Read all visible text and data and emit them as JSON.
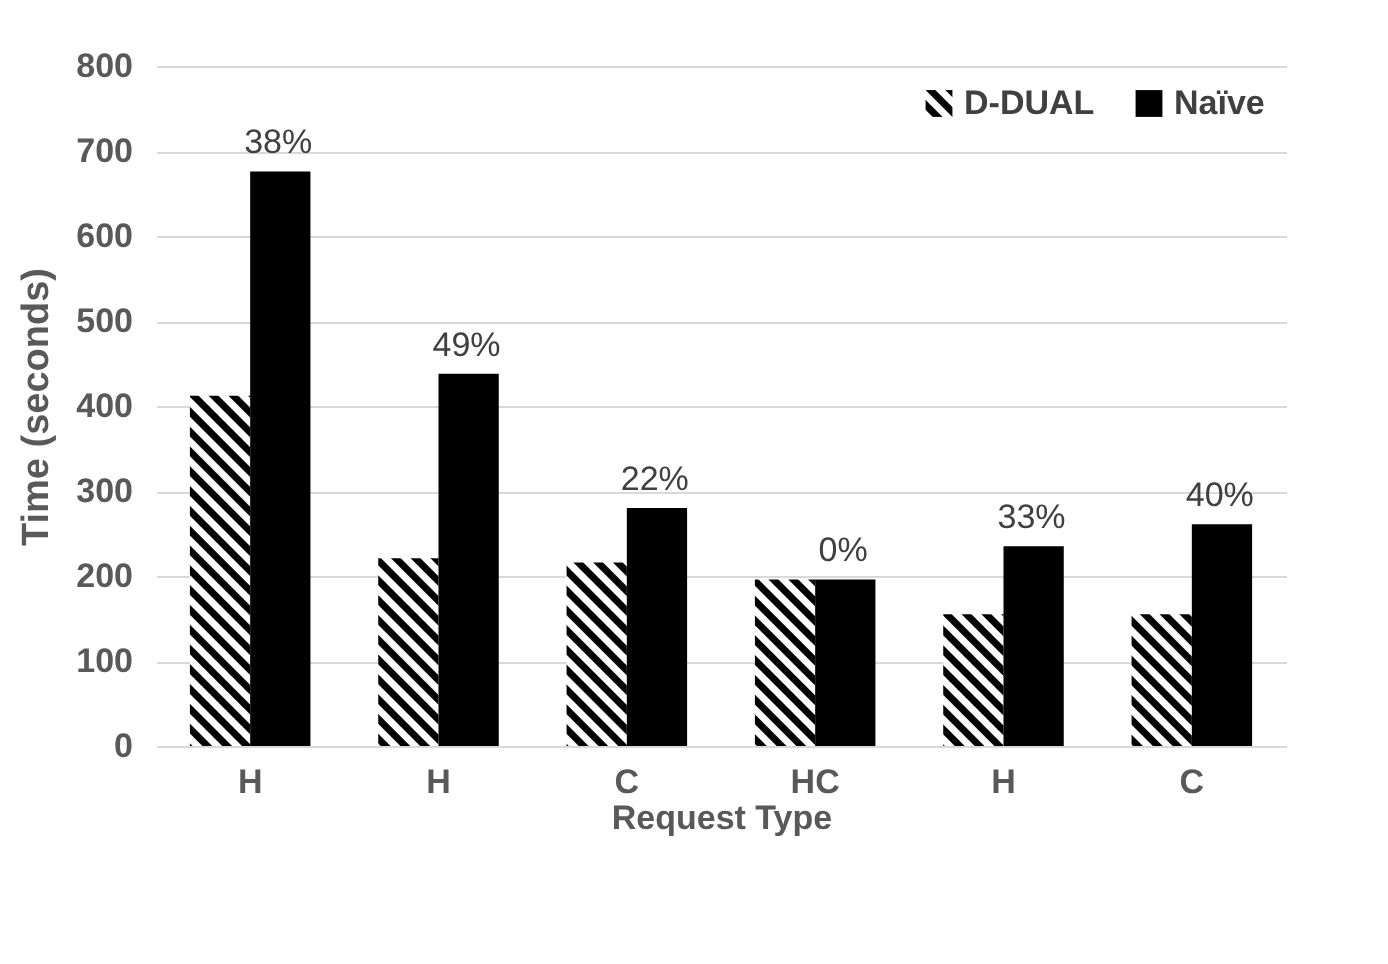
{
  "chart_data": {
    "type": "bar",
    "xlabel": "Request Type",
    "ylabel": "Time (seconds)",
    "categories": [
      "H",
      "H",
      "C",
      "HC",
      "H",
      "C"
    ],
    "series": [
      {
        "name": "D-DUAL",
        "color": "#000000",
        "values": [
          412,
          221,
          216,
          196,
          155,
          155
        ]
      },
      {
        "name": "Naïve",
        "color": "#000000",
        "values": [
          676,
          438,
          280,
          196,
          235,
          261
        ]
      }
    ],
    "ylim": [
      0,
      800
    ],
    "yticks": [
      0,
      100,
      200,
      300,
      400,
      500,
      600,
      700,
      800
    ],
    "grid": "y",
    "legend": "top right",
    "annotations": [
      "38%",
      "49%",
      "22%",
      "0%",
      "33%",
      "40%"
    ]
  }
}
